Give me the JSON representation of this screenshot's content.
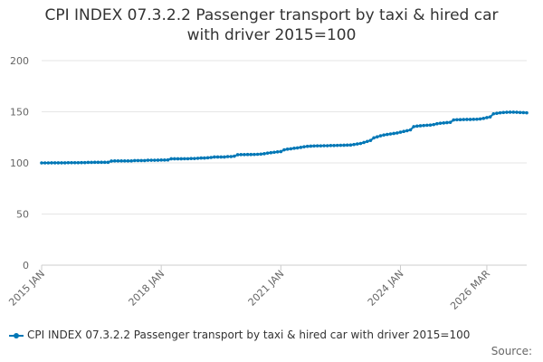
{
  "chart_data": {
    "type": "line",
    "title_lines": [
      "CPI INDEX 07.3.2.2 Passenger transport by taxi & hired car",
      "with driver 2015=100"
    ],
    "ylim": [
      0,
      200
    ],
    "yticks": [
      "0",
      "50",
      "100",
      "150",
      "200"
    ],
    "xticks": [
      "2015 JAN",
      "2018 JAN",
      "2021 JAN",
      "2024 JAN",
      "2026 MAR"
    ],
    "grid": true,
    "legend_position": "bottom",
    "series": [
      {
        "name": "CPI INDEX 07.3.2.2 Passenger transport by taxi & hired car with driver 2015=100",
        "color": "#0077b6",
        "start": "2015 JAN",
        "frequency": "monthly",
        "values": [
          100.0,
          100.0,
          100.0,
          100.1,
          100.1,
          100.1,
          100.1,
          100.1,
          100.2,
          100.2,
          100.2,
          100.2,
          100.3,
          100.3,
          100.5,
          100.5,
          100.6,
          100.6,
          100.6,
          100.6,
          100.6,
          101.8,
          101.9,
          101.9,
          101.9,
          101.9,
          101.9,
          101.9,
          102.3,
          102.3,
          102.3,
          102.3,
          102.6,
          102.6,
          102.6,
          102.7,
          102.8,
          102.8,
          102.9,
          104.0,
          104.0,
          104.0,
          104.0,
          104.1,
          104.1,
          104.3,
          104.3,
          104.5,
          104.8,
          104.8,
          105.0,
          105.3,
          105.8,
          105.8,
          105.8,
          105.8,
          106.2,
          106.2,
          106.6,
          108.0,
          108.1,
          108.1,
          108.2,
          108.2,
          108.3,
          108.4,
          108.6,
          109.0,
          109.6,
          110.0,
          110.4,
          110.8,
          111.1,
          112.8,
          113.4,
          113.8,
          114.3,
          114.7,
          115.2,
          115.8,
          116.2,
          116.4,
          116.6,
          116.7,
          116.7,
          116.8,
          116.8,
          117.0,
          117.0,
          117.1,
          117.2,
          117.3,
          117.4,
          117.5,
          118.0,
          118.5,
          119.0,
          120.0,
          121.0,
          122.0,
          124.5,
          125.5,
          126.5,
          127.3,
          127.8,
          128.3,
          128.8,
          129.3,
          130.0,
          130.8,
          131.5,
          132.3,
          135.5,
          136.0,
          136.3,
          136.6,
          136.8,
          137.0,
          137.5,
          138.3,
          138.8,
          139.1,
          139.4,
          139.7,
          142.0,
          142.2,
          142.3,
          142.4,
          142.5,
          142.5,
          142.6,
          142.7,
          143.0,
          143.5,
          144.3,
          145.0,
          148.0,
          148.5,
          149.0,
          149.3,
          149.5,
          149.6,
          149.6,
          149.5,
          149.3,
          149.2,
          149.0
        ]
      }
    ]
  },
  "legend": {
    "label": "CPI INDEX 07.3.2.2 Passenger transport by taxi & hired car with driver 2015=100"
  },
  "footer": {
    "source_label": "Source:"
  }
}
